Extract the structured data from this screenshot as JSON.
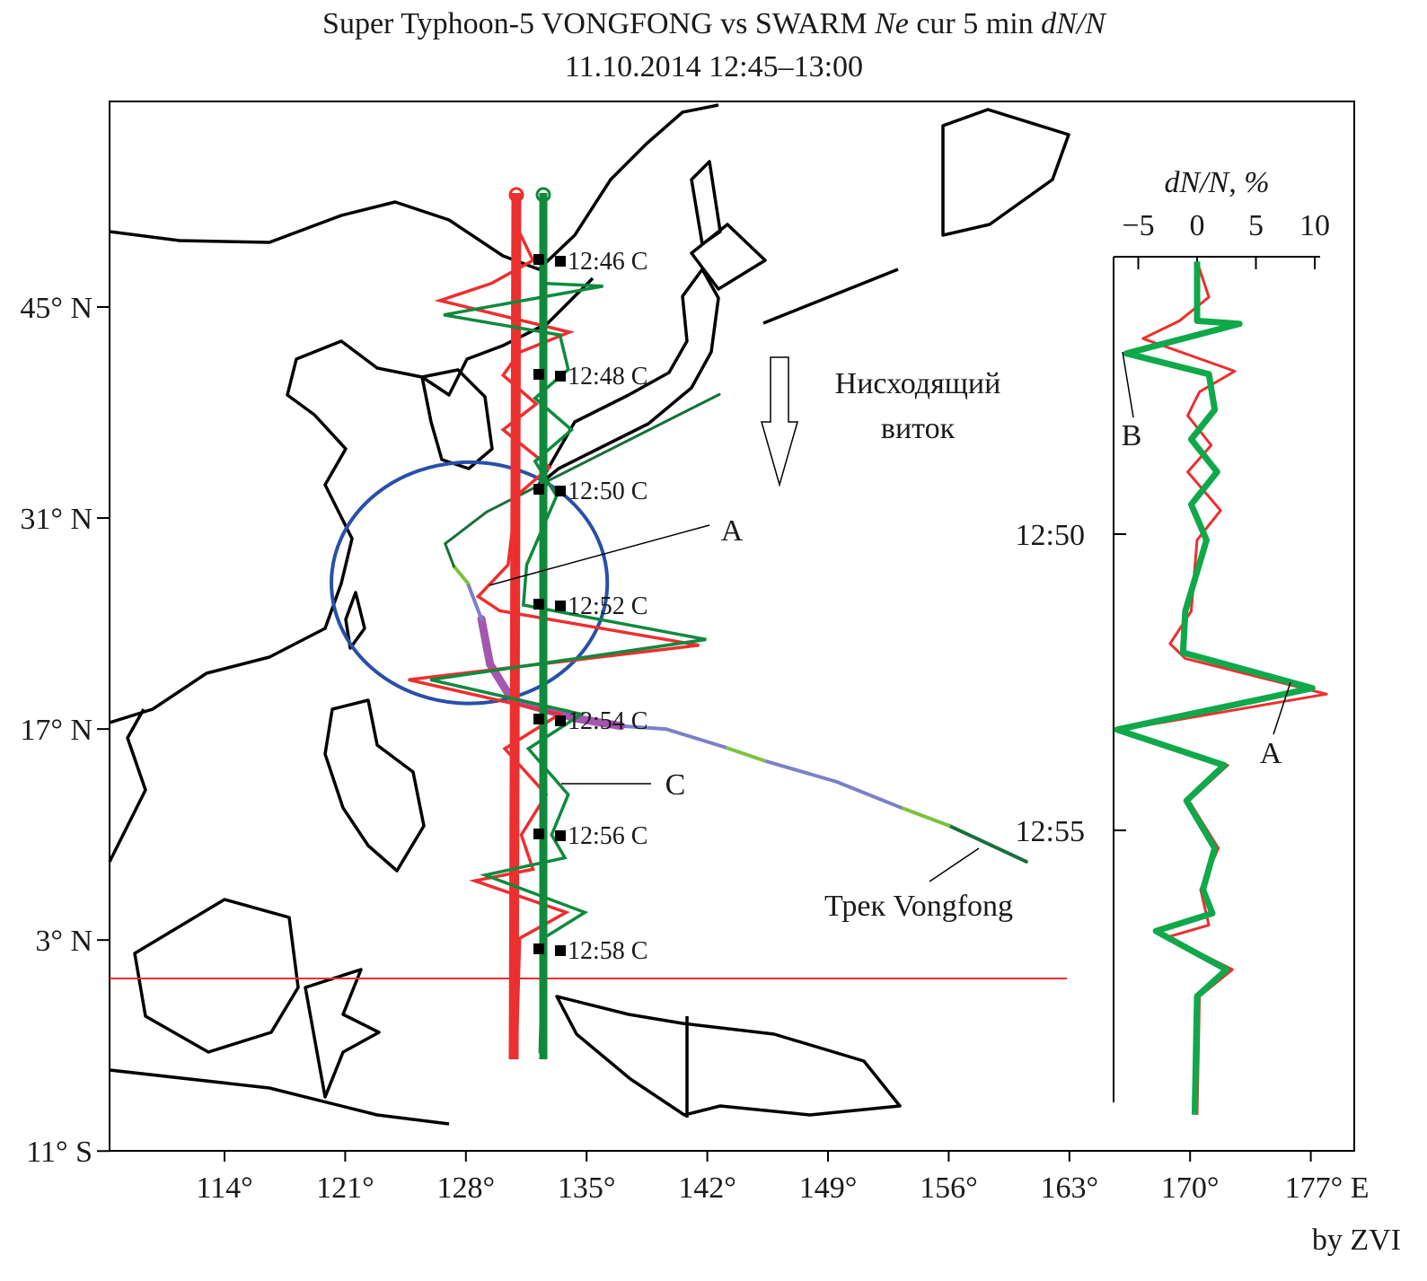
{
  "title": {
    "line1_prefix": "Super Typhoon-5 VONGFONG vs SWARM ",
    "line1_italic1": "Ne",
    "line1_mid": " cur 5 min ",
    "line1_italic2": "dN/N",
    "line2": "11.10.2014 12:45–13:00"
  },
  "credit": "by ZVI",
  "map": {
    "lat_ticks": [
      {
        "value": 45,
        "label": "45° N"
      },
      {
        "value": 31,
        "label": "31° N"
      },
      {
        "value": 17,
        "label": "17° N"
      },
      {
        "value": 3,
        "label": "3° N"
      },
      {
        "value": -11,
        "label": "11° S"
      }
    ],
    "lon_ticks": [
      {
        "value": 114,
        "label": "114°"
      },
      {
        "value": 121,
        "label": "121°"
      },
      {
        "value": 128,
        "label": "128°"
      },
      {
        "value": 135,
        "label": "135°"
      },
      {
        "value": 142,
        "label": "142°"
      },
      {
        "value": 149,
        "label": "149°"
      },
      {
        "value": 156,
        "label": "156°"
      },
      {
        "value": 163,
        "label": "163°"
      },
      {
        "value": 170,
        "label": "170°"
      },
      {
        "value": 177,
        "label": "177° E"
      }
    ],
    "time_markers": [
      "12:46 C",
      "12:48 C",
      "12:50 C",
      "12:52 C",
      "12:54 C",
      "12:56 C",
      "12:58 C"
    ],
    "orbit_label_line1": "Нисходящий",
    "orbit_label_line2": "виток",
    "track_label": "Трек Vongfong",
    "annotation_a": "A",
    "annotation_c": "C",
    "typhoon_track": [
      [
        160.5,
        8.2
      ],
      [
        156.0,
        10.6
      ],
      [
        153.2,
        11.8
      ],
      [
        149.5,
        13.5
      ],
      [
        145.3,
        14.9
      ],
      [
        143.0,
        15.8
      ],
      [
        139.6,
        17.0
      ],
      [
        137.0,
        17.2
      ],
      [
        134.4,
        17.7
      ],
      [
        130.7,
        18.9
      ],
      [
        129.4,
        21.3
      ],
      [
        128.9,
        24.3
      ],
      [
        128.1,
        26.7
      ],
      [
        127.3,
        27.8
      ],
      [
        126.8,
        29.3
      ],
      [
        129.2,
        31.4
      ],
      [
        132.3,
        33.2
      ],
      [
        137.5,
        36.2
      ],
      [
        142.7,
        39.2
      ]
    ],
    "typhoon_segment_colors": [
      "#1a6e3a",
      "#7cc242",
      "#7b80c9",
      "#7b80c9",
      "#7cc242",
      "#7b80c9",
      "#7b80c9",
      "#a456b0",
      "#a456b0",
      "#a456b0",
      "#a456b0",
      "#7b80c9",
      "#7cc242",
      "#1a6e3a",
      "#1a6e3a",
      "#1a6e3a",
      "#1a6e3a",
      "#1a6e3a"
    ],
    "circle_center": [
      128.2,
      26.7
    ],
    "circle_radius_deg": 8,
    "colors": {
      "red": "#ec2f2f",
      "green": "#0f8a3c",
      "circle": "#2850a8",
      "coast": "#000000"
    }
  },
  "chart_data": {
    "type": "line",
    "xlabel": "dN/N, %",
    "x_ticks": [
      -5,
      0,
      5,
      10
    ],
    "x_tick_labels": [
      "−5",
      "0",
      "5",
      "10"
    ],
    "y_ticks": [
      "12:50",
      "12:55"
    ],
    "ylim": [
      "12:45:18",
      "12:59:45"
    ],
    "annotations": [
      {
        "label": "B",
        "time": "12:46:57",
        "value": -6
      },
      {
        "label": "A",
        "time": "12:52:36",
        "value": 9.8
      }
    ],
    "series": [
      {
        "color": "#ec2f2f",
        "points": [
          [
            "12:45:24",
            0
          ],
          [
            "12:46:00",
            1
          ],
          [
            "12:46:24",
            -1.5
          ],
          [
            "12:46:42",
            -4.6
          ],
          [
            "12:47:15",
            3.2
          ],
          [
            "12:47:36",
            0.2
          ],
          [
            "12:48:00",
            -0.8
          ],
          [
            "12:48:30",
            1.2
          ],
          [
            "12:48:57",
            -0.8
          ],
          [
            "12:49:36",
            2
          ],
          [
            "12:50:06",
            0
          ],
          [
            "12:51:18",
            -0.5
          ],
          [
            "12:51:51",
            -2.3
          ],
          [
            "12:52:06",
            -1
          ],
          [
            "12:52:42",
            11
          ],
          [
            "12:53:18",
            -6.5
          ],
          [
            "12:53:54",
            2.6
          ],
          [
            "12:54:30",
            -0.7
          ],
          [
            "12:55:18",
            1.8
          ],
          [
            "12:56:00",
            0.3
          ],
          [
            "12:56:36",
            1
          ],
          [
            "12:56:48",
            -2.5
          ],
          [
            "12:57:21",
            3
          ],
          [
            "12:57:48",
            0.2
          ],
          [
            "12:59:48",
            0
          ]
        ]
      },
      {
        "color": "#0fa84a",
        "points": [
          [
            "12:45:24",
            0
          ],
          [
            "12:46:24",
            0
          ],
          [
            "12:46:27",
            3.6
          ],
          [
            "12:46:57",
            -6
          ],
          [
            "12:47:18",
            1
          ],
          [
            "12:47:54",
            1.5
          ],
          [
            "12:48:24",
            -0.5
          ],
          [
            "12:48:57",
            1.7
          ],
          [
            "12:49:30",
            -0.5
          ],
          [
            "12:50:06",
            0.8
          ],
          [
            "12:51:18",
            -1
          ],
          [
            "12:52:00",
            -1.2
          ],
          [
            "12:52:36",
            9.8
          ],
          [
            "12:53:18",
            -6.8
          ],
          [
            "12:53:54",
            2.3
          ],
          [
            "12:54:30",
            -0.9
          ],
          [
            "12:55:18",
            1.5
          ],
          [
            "12:56:00",
            0.5
          ],
          [
            "12:56:24",
            1.3
          ],
          [
            "12:56:42",
            -3.5
          ],
          [
            "12:57:21",
            2.5
          ],
          [
            "12:57:48",
            0
          ],
          [
            "12:59:48",
            -0.2
          ]
        ]
      }
    ]
  }
}
